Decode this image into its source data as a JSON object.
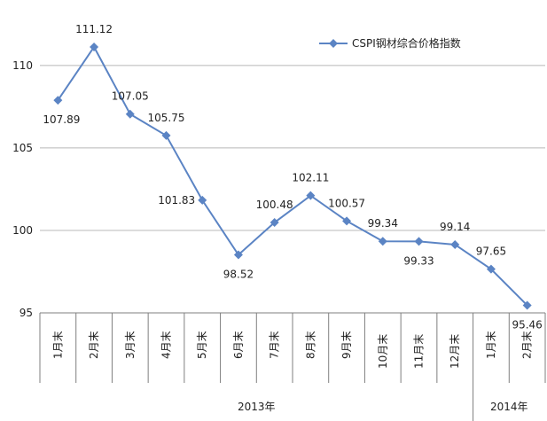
{
  "chart_data": {
    "type": "line",
    "legend": {
      "name": "CSPI钢材综合价格指数",
      "position": "top-right"
    },
    "colors": {
      "series": "#5b84c4",
      "grid": "#b8b8b8",
      "axis": "#7f7f7f"
    },
    "ylim": [
      95,
      113
    ],
    "yticks": [
      95,
      100,
      105,
      110
    ],
    "grid": true,
    "categories": [
      "1月末",
      "2月末",
      "3月末",
      "4月末",
      "5月末",
      "6月末",
      "7月末",
      "8月末",
      "9月末",
      "10月末",
      "11月末",
      "12月末",
      "1月末",
      "2月末"
    ],
    "groups": [
      {
        "label": "2013年",
        "count": 12
      },
      {
        "label": "2014年",
        "count": 2
      }
    ],
    "series": [
      {
        "name": "CSPI钢材综合价格指数",
        "values": [
          107.89,
          111.12,
          107.05,
          105.75,
          101.83,
          98.52,
          100.48,
          102.11,
          100.57,
          99.34,
          99.33,
          99.14,
          97.65,
          95.46
        ],
        "labels": [
          "107.89",
          "111.12",
          "107.05",
          "105.75",
          "101.83",
          "98.52",
          "100.48",
          "102.11",
          "100.57",
          "99.34",
          "99.33",
          "99.14",
          "97.65",
          "95.46"
        ]
      }
    ]
  }
}
